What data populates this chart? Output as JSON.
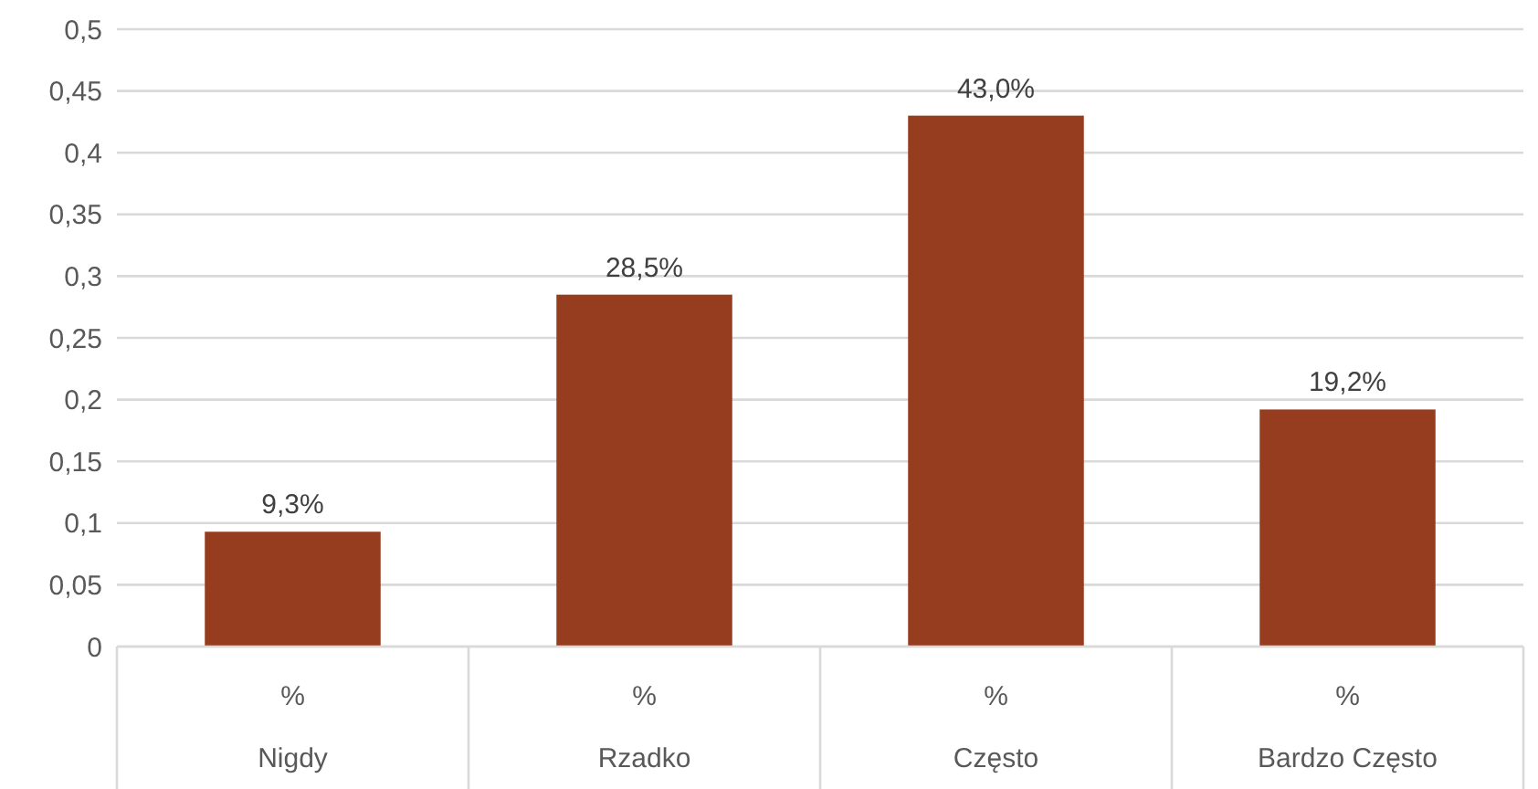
{
  "chart_data": {
    "type": "bar",
    "categories": [
      "%\nNigdy",
      "%\nRzadko",
      "%\nCzęsto",
      "%\nBardzo Często"
    ],
    "values": [
      0.093,
      0.285,
      0.43,
      0.192
    ],
    "value_labels": [
      "9,3%",
      "28,5%",
      "43,0%",
      "19,2%"
    ],
    "color": "#973d1f",
    "ylim": [
      0,
      0.5
    ],
    "yticks": [
      0,
      {
        "value": 0.05,
        "label": "0,05"
      },
      {
        "value": 0.1,
        "label": "0,1"
      },
      {
        "value": 0.15,
        "label": "0,15"
      },
      {
        "value": 0.2,
        "label": "0,2"
      },
      {
        "value": 0.25,
        "label": "0,25"
      },
      {
        "value": 0.3,
        "label": "0,3"
      },
      {
        "value": 0.35,
        "label": "0,35"
      },
      {
        "value": 0.4,
        "label": "0,4"
      },
      {
        "value": 0.45,
        "label": "0,45"
      },
      {
        "value": 0.5,
        "label": "0,5"
      }
    ],
    "grid": "y"
  }
}
